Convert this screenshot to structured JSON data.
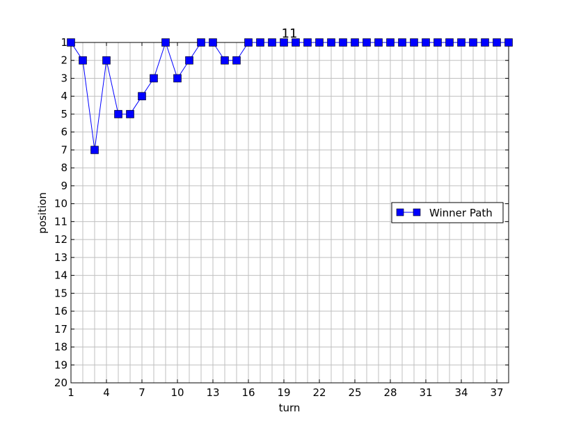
{
  "chart_data": {
    "type": "line",
    "title": "11",
    "xlabel": "turn",
    "ylabel": "position",
    "xlim": [
      1,
      38
    ],
    "ylim": [
      1,
      20
    ],
    "y_inverted": true,
    "grid": true,
    "legend_position": "center-right",
    "x_ticks": [
      1,
      4,
      7,
      10,
      13,
      16,
      19,
      22,
      25,
      28,
      31,
      34,
      37
    ],
    "y_ticks": [
      1,
      2,
      3,
      4,
      5,
      6,
      7,
      8,
      9,
      10,
      11,
      12,
      13,
      14,
      15,
      16,
      17,
      18,
      19,
      20
    ],
    "series": [
      {
        "name": "Winner Path",
        "color": "#0000ff",
        "marker": "square",
        "x": [
          1,
          2,
          3,
          4,
          5,
          6,
          7,
          8,
          9,
          10,
          11,
          12,
          13,
          14,
          15,
          16,
          17,
          18,
          19,
          20,
          21,
          22,
          23,
          24,
          25,
          26,
          27,
          28,
          29,
          30,
          31,
          32,
          33,
          34,
          35,
          36,
          37,
          38
        ],
        "y": [
          1,
          2,
          7,
          2,
          5,
          5,
          4,
          3,
          1,
          3,
          2,
          1,
          1,
          2,
          2,
          1,
          1,
          1,
          1,
          1,
          1,
          1,
          1,
          1,
          1,
          1,
          1,
          1,
          1,
          1,
          1,
          1,
          1,
          1,
          1,
          1,
          1,
          1
        ]
      }
    ]
  }
}
